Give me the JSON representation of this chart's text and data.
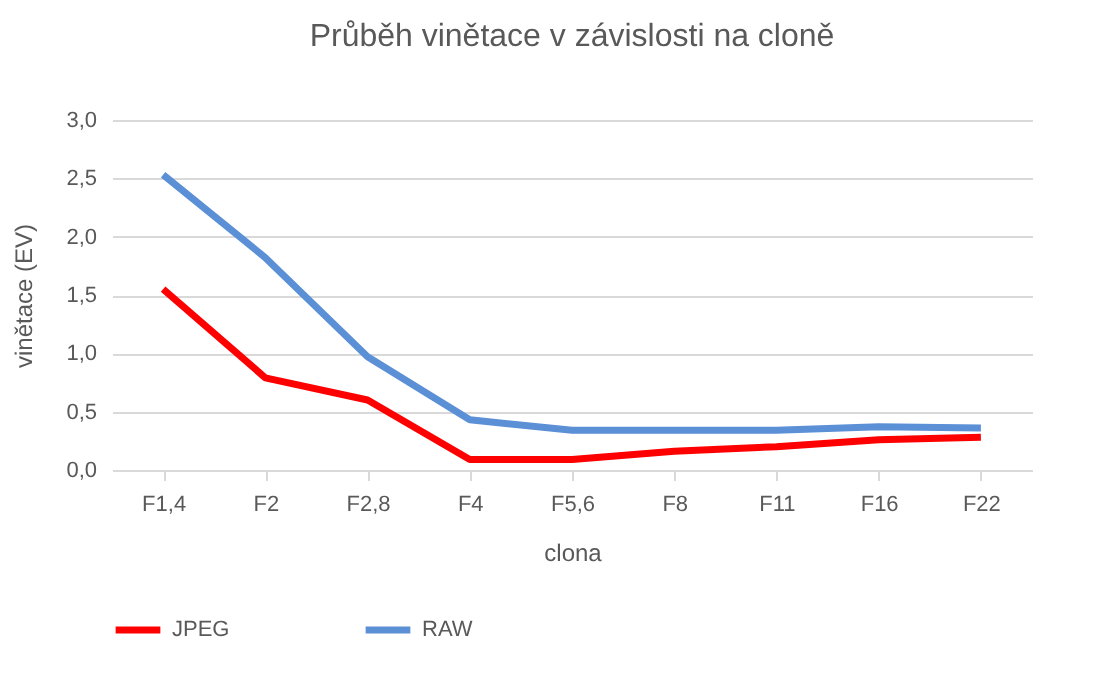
{
  "chart_data": {
    "type": "line",
    "title": "Průběh vinětace v závislosti na cloně",
    "xlabel": "clona",
    "ylabel": "vinětace (EV)",
    "categories": [
      "F1,4",
      "F2",
      "F2,8",
      "F4",
      "F5,6",
      "F8",
      "F11",
      "F16",
      "F22"
    ],
    "series": [
      {
        "name": "JPEG",
        "color": "#ff0000",
        "values": [
          1.55,
          0.79,
          0.6,
          0.09,
          0.09,
          0.16,
          0.2,
          0.26,
          0.28
        ]
      },
      {
        "name": "RAW",
        "color": "#5b8fd6",
        "values": [
          2.53,
          1.82,
          0.97,
          0.43,
          0.34,
          0.34,
          0.34,
          0.37,
          0.36
        ]
      }
    ],
    "ylim": [
      0,
      3
    ],
    "yticks": [
      {
        "value": 0,
        "label": "0,0"
      },
      {
        "value": 0.5,
        "label": "0,5"
      },
      {
        "value": 1,
        "label": "1,0"
      },
      {
        "value": 1.5,
        "label": "1,5"
      },
      {
        "value": 2,
        "label": "2,0"
      },
      {
        "value": 2.5,
        "label": "2,5"
      },
      {
        "value": 3,
        "label": "3,0"
      }
    ],
    "grid": "y",
    "legend": "bottom",
    "marker": "none",
    "line_style": "solid"
  }
}
